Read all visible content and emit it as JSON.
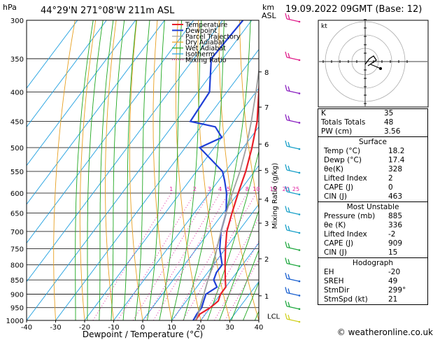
{
  "header": {
    "pressure_unit": "hPa",
    "location": "44°29'N  271°08'W  211m  ASL",
    "km_label": "km",
    "asl_label": "ASL",
    "datetime": "19.09.2022  09GMT  (Base: 12)"
  },
  "legend": [
    "Temperature",
    "Dewpoint",
    "Parcel Trajectory",
    "Dry Adiabat",
    "Wet Adiabat",
    "Isotherm",
    "Mixing Ratio"
  ],
  "colors": {
    "temperature": "#e8202a",
    "dewpoint": "#1f3fd6",
    "parcel": "#a0a0a0",
    "dry_adiabat": "#e8a020",
    "wet_adiabat": "#20a820",
    "isotherm": "#20a0e0",
    "mixing_ratio": "#e020a0",
    "wind": "#1aa0c8"
  },
  "axes": {
    "xlabel": "Dewpoint / Temperature (°C)",
    "ylabel_right": "Mixing Ratio (g/kg)",
    "x_ticks": [
      "-40",
      "-30",
      "-20",
      "-10",
      "0",
      "10",
      "20",
      "30",
      "40"
    ],
    "p_ticks": [
      "300",
      "350",
      "400",
      "450",
      "500",
      "550",
      "600",
      "650",
      "700",
      "750",
      "800",
      "850",
      "900",
      "950",
      "1000"
    ],
    "km_ticks": [
      "8",
      "7",
      "6",
      "5",
      "4",
      "3",
      "2",
      "1"
    ],
    "lcl_label": "LCL",
    "mixing_labels": [
      "1",
      "2",
      "3",
      "4",
      "5",
      "8",
      "10",
      "15",
      "20",
      "25"
    ]
  },
  "chart_data": {
    "type": "line",
    "title": "44°29'N  271°08'W  211m  ASL",
    "xlabel": "Dewpoint / Temperature (°C)",
    "ylabel": "hPa",
    "xlim": [
      -40,
      40
    ],
    "ylim": [
      1000,
      300
    ],
    "series": [
      {
        "name": "Temperature",
        "points": [
          [
            1000,
            18.2
          ],
          [
            975,
            18
          ],
          [
            950,
            20
          ],
          [
            925,
            21
          ],
          [
            900,
            20
          ],
          [
            875,
            20
          ],
          [
            850,
            18
          ],
          [
            800,
            14
          ],
          [
            750,
            10
          ],
          [
            700,
            6
          ],
          [
            650,
            3
          ],
          [
            600,
            0
          ],
          [
            550,
            -3
          ],
          [
            500,
            -7
          ],
          [
            450,
            -12
          ],
          [
            400,
            -19
          ],
          [
            350,
            -27
          ],
          [
            300,
            -36
          ]
        ]
      },
      {
        "name": "Dewpoint",
        "points": [
          [
            1000,
            17.4
          ],
          [
            975,
            17
          ],
          [
            950,
            17
          ],
          [
            925,
            16
          ],
          [
            900,
            15
          ],
          [
            875,
            17
          ],
          [
            850,
            14
          ],
          [
            825,
            13
          ],
          [
            800,
            13
          ],
          [
            750,
            8
          ],
          [
            700,
            4
          ],
          [
            650,
            1
          ],
          [
            600,
            -4
          ],
          [
            570,
            -8
          ],
          [
            550,
            -11
          ],
          [
            500,
            -25
          ],
          [
            480,
            -20
          ],
          [
            460,
            -25
          ],
          [
            450,
            -35
          ],
          [
            400,
            -36
          ],
          [
            350,
            -44
          ],
          [
            300,
            -43
          ]
        ]
      },
      {
        "name": "Parcel Trajectory",
        "points": [
          [
            1000,
            18.2
          ],
          [
            975,
            17.4
          ],
          [
            950,
            16.5
          ],
          [
            900,
            14.3
          ],
          [
            850,
            12
          ],
          [
            800,
            10
          ],
          [
            750,
            7
          ],
          [
            700,
            4
          ],
          [
            650,
            1
          ],
          [
            600,
            -2
          ],
          [
            550,
            -5
          ],
          [
            500,
            -9
          ],
          [
            450,
            -14
          ],
          [
            400,
            -20
          ],
          [
            350,
            -27
          ],
          [
            300,
            -36
          ]
        ]
      }
    ],
    "wind_barbs_hpa": [
      300,
      350,
      400,
      450,
      500,
      550,
      600,
      650,
      700,
      750,
      800,
      850,
      900,
      950,
      1000
    ]
  },
  "indices": {
    "rows": [
      [
        "K",
        "35"
      ],
      [
        "Totals Totals",
        "48"
      ],
      [
        "PW (cm)",
        "3.56"
      ]
    ]
  },
  "surface": {
    "title": "Surface",
    "rows": [
      [
        "Temp (°C)",
        "18.2"
      ],
      [
        "Dewp (°C)",
        "17.4"
      ],
      [
        "θe(K)",
        "328"
      ],
      [
        "Lifted Index",
        "2"
      ],
      [
        "CAPE (J)",
        "0"
      ],
      [
        "CIN (J)",
        "463"
      ]
    ]
  },
  "most_unstable": {
    "title": "Most Unstable",
    "rows": [
      [
        "Pressure (mb)",
        "885"
      ],
      [
        "θe (K)",
        "336"
      ],
      [
        "Lifted Index",
        "-2"
      ],
      [
        "CAPE (J)",
        "909"
      ],
      [
        "CIN (J)",
        "15"
      ]
    ]
  },
  "hodograph_table": {
    "title": "Hodograph",
    "rows": [
      [
        "EH",
        "-20"
      ],
      [
        "SREH",
        "49"
      ],
      [
        "StmDir",
        "299°"
      ],
      [
        "StmSpd (kt)",
        "21"
      ]
    ]
  },
  "hodograph": {
    "label": "kt"
  },
  "footer": "© weatheronline.co.uk"
}
